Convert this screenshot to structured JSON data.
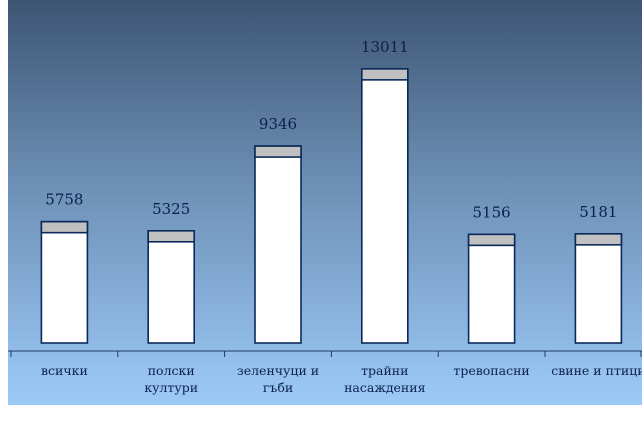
{
  "chart_data": {
    "type": "bar",
    "categories": [
      [
        "всички"
      ],
      [
        "полски",
        "култури"
      ],
      [
        "зеленчуци и",
        "гъби"
      ],
      [
        "трайни",
        "насаждения"
      ],
      [
        "тревопасни"
      ],
      [
        "свине и птици"
      ]
    ],
    "values": [
      5758,
      5325,
      9346,
      13011,
      5156,
      5181
    ],
    "title": "",
    "xlabel": "",
    "ylabel": "",
    "ylim": [
      0,
      13500
    ],
    "grid": false,
    "legend": "none",
    "colors": {
      "background_top": "#3d5573",
      "background_bottom": "#9ccaf8",
      "bar_fill": "#ffffff",
      "bar_cap": "#c0c0c0",
      "bar_stroke": "#0b2a5a",
      "axis": "#1f3a66",
      "text": "#0d1f4d"
    }
  }
}
